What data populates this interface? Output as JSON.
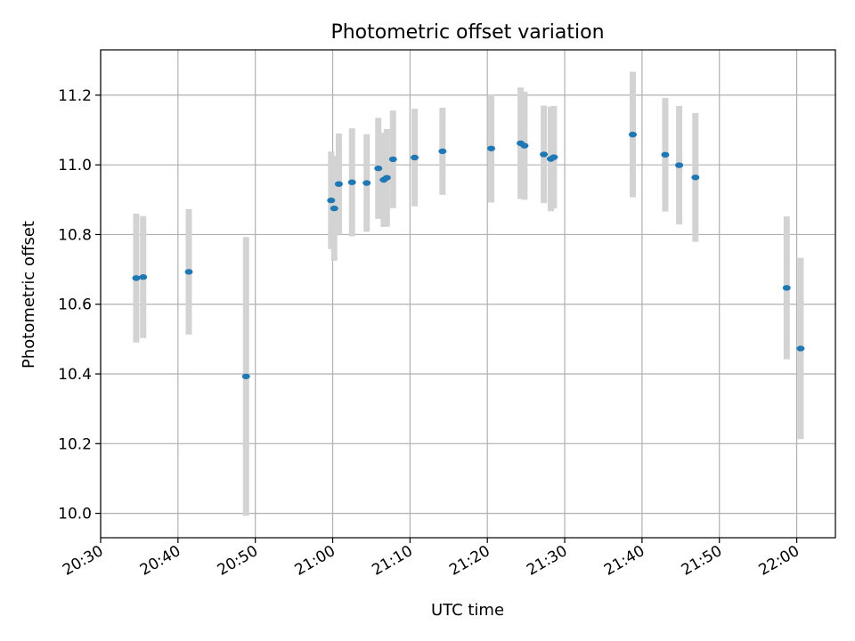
{
  "chart_data": {
    "type": "scatter",
    "title": "Photometric offset variation",
    "xlabel": "UTC time",
    "ylabel": "Photometric offset",
    "x_axis_type": "time",
    "xlim": [
      "20:30",
      "22:05"
    ],
    "ylim": [
      9.93,
      11.33
    ],
    "x_ticks": [
      "20:30",
      "20:40",
      "20:50",
      "21:00",
      "21:10",
      "21:20",
      "21:30",
      "21:40",
      "21:50",
      "22:00"
    ],
    "y_ticks": [
      "10.0",
      "10.2",
      "10.4",
      "10.6",
      "10.8",
      "11.0",
      "11.2"
    ],
    "grid": true,
    "legend": "none",
    "colors": {
      "point": "#1f77b4",
      "errorbar": "#d3d3d3"
    },
    "series": [
      {
        "points": [
          {
            "x": "20:34:36",
            "y": 10.675,
            "yerr": 0.185
          },
          {
            "x": "20:35:30",
            "y": 10.678,
            "yerr": 0.175
          },
          {
            "x": "20:41:24",
            "y": 10.693,
            "yerr": 0.18
          },
          {
            "x": "20:48:48",
            "y": 10.393,
            "yerr": 0.4
          },
          {
            "x": "20:59:48",
            "y": 10.898,
            "yerr": 0.14
          },
          {
            "x": "21:00:12",
            "y": 10.875,
            "yerr": 0.15
          },
          {
            "x": "21:00:48",
            "y": 10.945,
            "yerr": 0.145
          },
          {
            "x": "21:02:30",
            "y": 10.95,
            "yerr": 0.155
          },
          {
            "x": "21:04:24",
            "y": 10.948,
            "yerr": 0.14
          },
          {
            "x": "21:05:54",
            "y": 10.99,
            "yerr": 0.145
          },
          {
            "x": "21:06:36",
            "y": 10.957,
            "yerr": 0.135
          },
          {
            "x": "21:07:00",
            "y": 10.963,
            "yerr": 0.14
          },
          {
            "x": "21:07:48",
            "y": 11.016,
            "yerr": 0.14
          },
          {
            "x": "21:10:36",
            "y": 11.021,
            "yerr": 0.14
          },
          {
            "x": "21:14:12",
            "y": 11.039,
            "yerr": 0.125
          },
          {
            "x": "21:20:30",
            "y": 11.047,
            "yerr": 0.155
          },
          {
            "x": "21:24:18",
            "y": 11.062,
            "yerr": 0.16
          },
          {
            "x": "21:24:48",
            "y": 11.055,
            "yerr": 0.155
          },
          {
            "x": "21:27:18",
            "y": 11.03,
            "yerr": 0.14
          },
          {
            "x": "21:28:12",
            "y": 11.017,
            "yerr": 0.15
          },
          {
            "x": "21:28:36",
            "y": 11.022,
            "yerr": 0.147
          },
          {
            "x": "21:38:48",
            "y": 11.087,
            "yerr": 0.18
          },
          {
            "x": "21:43:00",
            "y": 11.029,
            "yerr": 0.163
          },
          {
            "x": "21:44:48",
            "y": 10.999,
            "yerr": 0.17
          },
          {
            "x": "21:46:54",
            "y": 10.964,
            "yerr": 0.185
          },
          {
            "x": "21:58:42",
            "y": 10.647,
            "yerr": 0.205
          },
          {
            "x": "22:00:30",
            "y": 10.473,
            "yerr": 0.26
          }
        ]
      }
    ]
  }
}
